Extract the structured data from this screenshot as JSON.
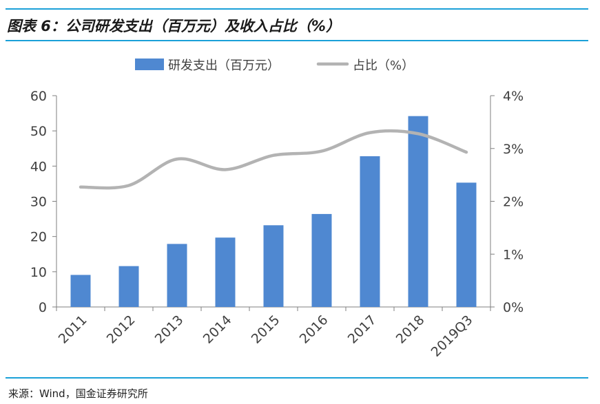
{
  "title": "图表 6：公司研发支出（百万元）及收入占比（%）",
  "source": "来源：Wind，国金证券研究所",
  "colors": {
    "bar": "#4f88d1",
    "line": "#b3b3b3",
    "rule": "#1aa0d8",
    "axis": "#7f7f7f",
    "text": "#404040"
  },
  "chart_data": {
    "type": "bar",
    "categories": [
      "2011",
      "2012",
      "2013",
      "2014",
      "2015",
      "2016",
      "2017",
      "2018",
      "2019Q3"
    ],
    "series": [
      {
        "name": "研发支出（百万元）",
        "type": "bar",
        "axis": "left",
        "values": [
          9.1,
          11.6,
          17.9,
          19.7,
          23.2,
          26.4,
          42.8,
          54.2,
          35.3
        ]
      },
      {
        "name": "占比（%）",
        "type": "line",
        "axis": "right",
        "values": [
          2.27,
          2.3,
          2.8,
          2.6,
          2.87,
          2.95,
          3.3,
          3.28,
          2.93
        ]
      }
    ],
    "ylim": [
      0,
      60
    ],
    "yticks": [
      0,
      10,
      20,
      30,
      40,
      50,
      60
    ],
    "y2lim": [
      0,
      4
    ],
    "y2ticks": [
      "0%",
      "1%",
      "2%",
      "3%",
      "4%"
    ],
    "legend_position": "top",
    "grid": false
  }
}
